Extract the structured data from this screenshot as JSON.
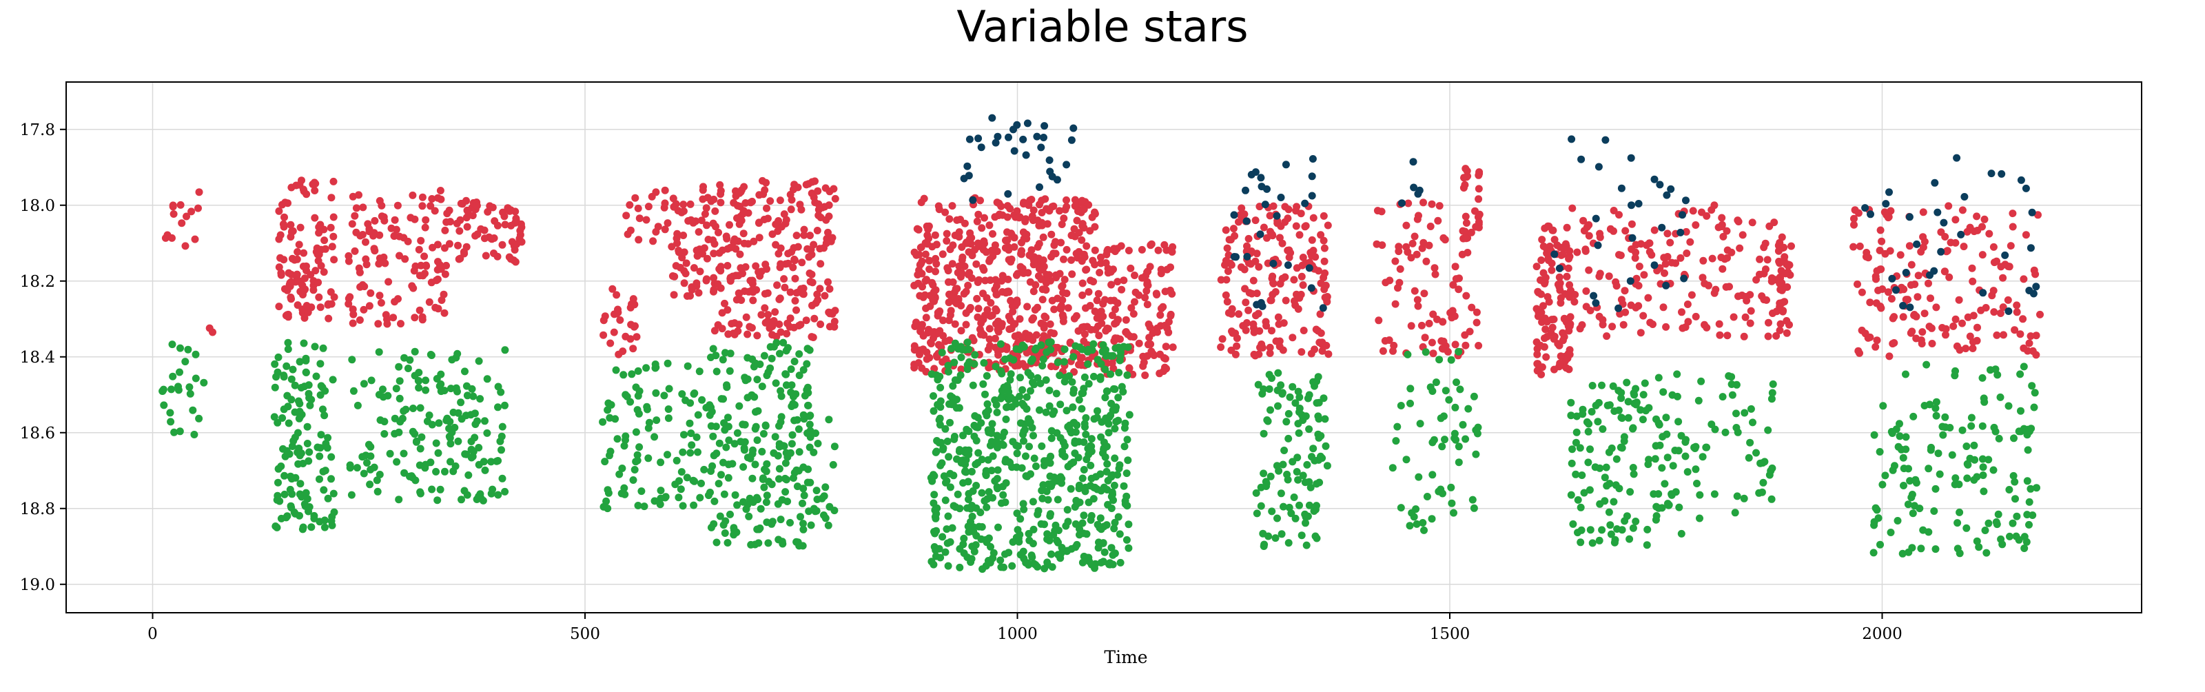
{
  "chart_data": {
    "type": "scatter",
    "title": "Variable stars",
    "xlabel": "Time",
    "ylabel": "",
    "xlim": [
      -100,
      2300
    ],
    "ylim": [
      19.075,
      17.675
    ],
    "y_inverted": true,
    "grid": true,
    "x_ticks": [
      0,
      500,
      1000,
      1500,
      2000
    ],
    "y_ticks": [
      17.8,
      18.0,
      18.2,
      18.4,
      18.6,
      18.8,
      19.0
    ],
    "x_tick_labels": [
      "0",
      "500",
      "1000",
      "1500",
      "2000"
    ],
    "y_tick_labels": [
      "17.8",
      "18.0",
      "18.2",
      "18.4",
      "18.6",
      "18.8",
      "19.0"
    ],
    "colors": {
      "red": "#dc3545",
      "green": "#22a33e",
      "navy": "#0b3d5c"
    },
    "series": [
      {
        "color": "#dc3545",
        "groups": [
          {
            "x": [
              15,
              55
            ],
            "y": [
              17.96,
              18.12
            ],
            "n": 14
          },
          {
            "x": [
              65,
              72
            ],
            "y": [
              18.3,
              18.35
            ],
            "n": 2
          },
          {
            "x": [
              145,
              212
            ],
            "y": [
              17.93,
              18.3
            ],
            "n": 110
          },
          {
            "x": [
              225,
              340
            ],
            "y": [
              17.96,
              18.32
            ],
            "n": 120
          },
          {
            "x": [
              340,
              430
            ],
            "y": [
              17.98,
              18.15
            ],
            "n": 70
          },
          {
            "x": [
              520,
              560
            ],
            "y": [
              18.22,
              18.4
            ],
            "n": 25
          },
          {
            "x": [
              545,
              600
            ],
            "y": [
              17.95,
              18.1
            ],
            "n": 20
          },
          {
            "x": [
              600,
              650
            ],
            "y": [
              17.95,
              18.24
            ],
            "n": 70
          },
          {
            "x": [
              650,
              790
            ],
            "y": [
              17.93,
              18.35
            ],
            "n": 240
          },
          {
            "x": [
              880,
              1090
            ],
            "y": [
              17.98,
              18.44
            ],
            "n": 560
          },
          {
            "x": [
              1090,
              1180
            ],
            "y": [
              18.1,
              18.45
            ],
            "n": 150
          },
          {
            "x": [
              1235,
              1360
            ],
            "y": [
              18.0,
              18.4
            ],
            "n": 190
          },
          {
            "x": [
              1415,
              1535
            ],
            "y": [
              17.98,
              18.4
            ],
            "n": 90
          },
          {
            "x": [
              1515,
              1535
            ],
            "y": [
              17.9,
              18.1
            ],
            "n": 25
          },
          {
            "x": [
              1600,
              1640
            ],
            "y": [
              18.05,
              18.45
            ],
            "n": 110
          },
          {
            "x": [
              1640,
              1880
            ],
            "y": [
              18.0,
              18.35
            ],
            "n": 170
          },
          {
            "x": [
              1880,
              1895
            ],
            "y": [
              18.08,
              18.35
            ],
            "n": 40
          },
          {
            "x": [
              1965,
              2185
            ],
            "y": [
              18.0,
              18.4
            ],
            "n": 170
          }
        ]
      },
      {
        "color": "#22a33e",
        "groups": [
          {
            "x": [
              10,
              60
            ],
            "y": [
              18.36,
              18.62
            ],
            "n": 25
          },
          {
            "x": [
              140,
              210
            ],
            "y": [
              18.36,
              18.86
            ],
            "n": 130
          },
          {
            "x": [
              225,
              410
            ],
            "y": [
              18.38,
              18.78
            ],
            "n": 170
          },
          {
            "x": [
              520,
              650
            ],
            "y": [
              18.4,
              18.8
            ],
            "n": 110
          },
          {
            "x": [
              645,
              760
            ],
            "y": [
              18.36,
              18.9
            ],
            "n": 210
          },
          {
            "x": [
              760,
              790
            ],
            "y": [
              18.55,
              18.85
            ],
            "n": 25
          },
          {
            "x": [
              900,
              1130
            ],
            "y": [
              18.36,
              18.96
            ],
            "n": 620
          },
          {
            "x": [
              1275,
              1360
            ],
            "y": [
              18.44,
              18.9
            ],
            "n": 110
          },
          {
            "x": [
              1430,
              1535
            ],
            "y": [
              18.38,
              18.86
            ],
            "n": 60
          },
          {
            "x": [
              1640,
              1790
            ],
            "y": [
              18.44,
              18.9
            ],
            "n": 150
          },
          {
            "x": [
              1790,
              1880
            ],
            "y": [
              18.45,
              18.82
            ],
            "n": 40
          },
          {
            "x": [
              1990,
              2180
            ],
            "y": [
              18.42,
              18.92
            ],
            "n": 150
          }
        ]
      },
      {
        "color": "#0b3d5c",
        "groups": [
          {
            "x": [
              935,
              1075
            ],
            "y": [
              17.76,
              18.0
            ],
            "n": 30
          },
          {
            "x": [
              1250,
              1360
            ],
            "y": [
              17.87,
              18.28
            ],
            "n": 28
          },
          {
            "x": [
              1435,
              1480
            ],
            "y": [
              17.88,
              18.01
            ],
            "n": 5
          },
          {
            "x": [
              1615,
              1780
            ],
            "y": [
              17.82,
              18.28
            ],
            "n": 28
          },
          {
            "x": [
              1980,
              2180
            ],
            "y": [
              17.86,
              18.28
            ],
            "n": 32
          }
        ]
      }
    ]
  }
}
